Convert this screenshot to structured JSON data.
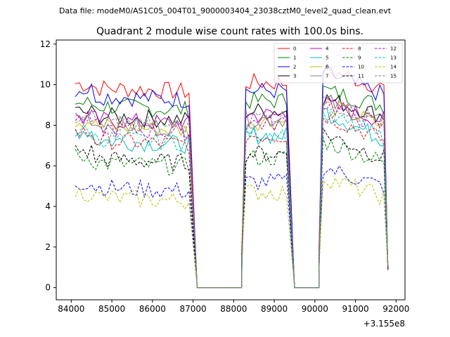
{
  "chart_data": {
    "type": "line",
    "suptitle": "Data file: modeM0/AS1C05_004T01_9000003404_23038cztM0_level2_quad_clean.evt",
    "title": "Quadrant 2 module wise count rates with 100.0s bins.",
    "xlabel": "",
    "ylabel": "",
    "x_offset_label": "+3.155e8",
    "xlim": [
      83630,
      92220
    ],
    "ylim": [
      -0.6,
      12.2
    ],
    "xticks": [
      84000,
      85000,
      86000,
      87000,
      88000,
      89000,
      90000,
      91000,
      92000
    ],
    "xtick_labels": [
      "84000",
      "85000",
      "86000",
      "87000",
      "88000",
      "89000",
      "90000",
      "91000",
      "92000"
    ],
    "yticks": [
      0,
      2,
      4,
      6,
      8,
      10,
      12
    ],
    "ytick_labels": [
      "0",
      "2",
      "4",
      "6",
      "8",
      "10",
      "12"
    ],
    "grid": false,
    "legend_position": "top-right",
    "series": [
      {
        "name": "0",
        "color": "#ff0000",
        "dashed": false,
        "level": 9.9,
        "bump": 0.3
      },
      {
        "name": "1",
        "color": "#008000",
        "dashed": false,
        "level": 9.0,
        "bump": 0.2
      },
      {
        "name": "2",
        "color": "#0000ff",
        "dashed": false,
        "level": 9.5,
        "bump": 0.6
      },
      {
        "name": "3",
        "color": "#000000",
        "dashed": false,
        "level": 8.5,
        "bump": 0.3
      },
      {
        "name": "4",
        "color": "#bf00bf",
        "dashed": false,
        "level": 8.3,
        "bump": 0.2
      },
      {
        "name": "5",
        "color": "#00bfbf",
        "dashed": false,
        "level": 7.3,
        "bump": 0.9
      },
      {
        "name": "6",
        "color": "#bfbf00",
        "dashed": false,
        "level": 8.0,
        "bump": 0.5
      },
      {
        "name": "7",
        "color": "#808080",
        "dashed": false,
        "level": 8.1,
        "bump": 0.6
      },
      {
        "name": "8",
        "color": "#ff0000",
        "dashed": true,
        "level": 7.3,
        "bump": 0.7
      },
      {
        "name": "9",
        "color": "#008000",
        "dashed": true,
        "level": 6.2,
        "bump": 0.5
      },
      {
        "name": "10",
        "color": "#0000ff",
        "dashed": true,
        "level": 5.0,
        "bump": 0.4
      },
      {
        "name": "11",
        "color": "#000000",
        "dashed": true,
        "level": 6.4,
        "bump": 0.7
      },
      {
        "name": "12",
        "color": "#bf00bf",
        "dashed": true,
        "level": 7.9,
        "bump": 0.7
      },
      {
        "name": "13",
        "color": "#00bfbf",
        "dashed": true,
        "level": 7.4,
        "bump": 0.6
      },
      {
        "name": "14",
        "color": "#bfbf00",
        "dashed": true,
        "level": 4.5,
        "bump": 0.4
      },
      {
        "name": "15",
        "color": "#808080",
        "dashed": true,
        "level": 8.2,
        "bump": 0.5
      }
    ],
    "segments": [
      {
        "x_start": 84100,
        "x_end": 86900,
        "drop_to": 87100
      },
      {
        "x_start": 88200,
        "x_end": 89300,
        "drop_to": 89500
      },
      {
        "x_start": 90100,
        "x_end": 91800,
        "drop_to": null
      }
    ],
    "zero_spans": [
      [
        87100,
        88200
      ],
      [
        89500,
        90100
      ]
    ]
  }
}
